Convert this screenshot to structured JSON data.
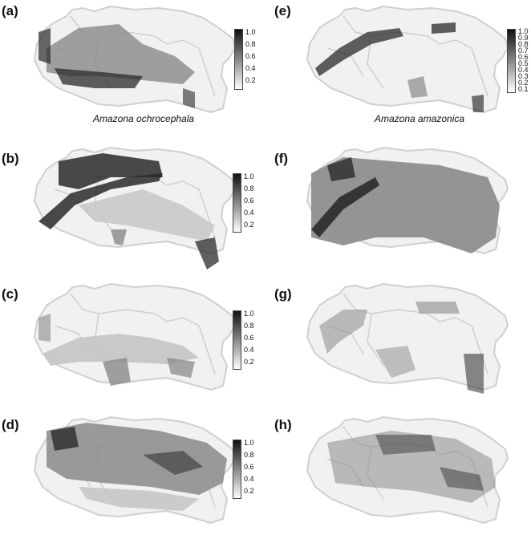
{
  "figure": {
    "panels": [
      {
        "id": "a",
        "label": "(a)",
        "species": "Amazona ochrocephala",
        "legend_ticks": [
          "1.0",
          "0.8",
          "0.6",
          "0.4",
          "0.2"
        ],
        "pattern": "a"
      },
      {
        "id": "b",
        "label": "(b)",
        "species": "",
        "legend_ticks": [
          "1.0",
          "0.8",
          "0.6",
          "0.4",
          "0.2"
        ],
        "pattern": "b"
      },
      {
        "id": "c",
        "label": "(c)",
        "species": "",
        "legend_ticks": [
          "1.0",
          "0.8",
          "0.6",
          "0.4",
          "0.2"
        ],
        "pattern": "c"
      },
      {
        "id": "d",
        "label": "(d)",
        "species": "",
        "legend_ticks": [
          "1.0",
          "0.8",
          "0.6",
          "0.4",
          "0.2"
        ],
        "pattern": "d"
      },
      {
        "id": "e",
        "label": "(e)",
        "species": "Amazona amazonica",
        "legend_ticks": [
          "1.0",
          "0.9",
          "0.8",
          "0.7",
          "0.6",
          "0.5",
          "0.4",
          "0.3",
          "0.2",
          "0.1"
        ],
        "pattern": "e"
      },
      {
        "id": "f",
        "label": "(f)",
        "species": "",
        "legend_ticks": [],
        "pattern": "f"
      },
      {
        "id": "g",
        "label": "(g)",
        "species": "",
        "legend_ticks": [],
        "pattern": "g"
      },
      {
        "id": "h",
        "label": "(h)",
        "species": "",
        "legend_ticks": [],
        "pattern": "h"
      }
    ],
    "colors": {
      "coast": "#cfcfcf",
      "land_light": "#f1f1f1",
      "dark": "#2a2a2a",
      "mid": "#8a8a8a",
      "light": "#c4c4c4"
    }
  }
}
